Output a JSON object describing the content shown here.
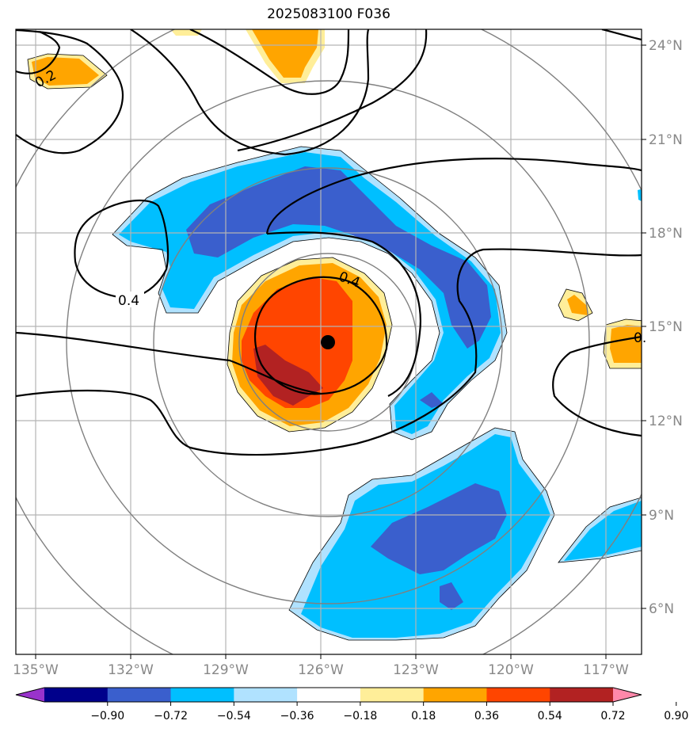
{
  "title": "2025083100 F036",
  "map": {
    "lon_ticks": [
      "135°W",
      "132°W",
      "129°W",
      "126°W",
      "123°W",
      "120°W",
      "117°W"
    ],
    "lat_ticks": [
      "24°N",
      "21°N",
      "18°N",
      "15°N",
      "12°N",
      "9°N",
      "6°N"
    ],
    "contour_labels": [
      "0.2",
      "0.4",
      "0.4",
      "0."
    ],
    "storm_center": {
      "lon": -125.7,
      "lat": 14.5
    }
  },
  "colorbar": {
    "ticks": [
      "−0.90",
      "−0.72",
      "−0.54",
      "−0.36",
      "−0.18",
      "0.18",
      "0.36",
      "0.54",
      "0.72",
      "0.90"
    ],
    "colors": [
      "#9933cc",
      "#00008b",
      "#3a5fcd",
      "#00bfff",
      "#b0e2ff",
      "#ffffff",
      "#ffee99",
      "#ffa500",
      "#ff4500",
      "#b22222",
      "#ff88aa"
    ]
  }
}
